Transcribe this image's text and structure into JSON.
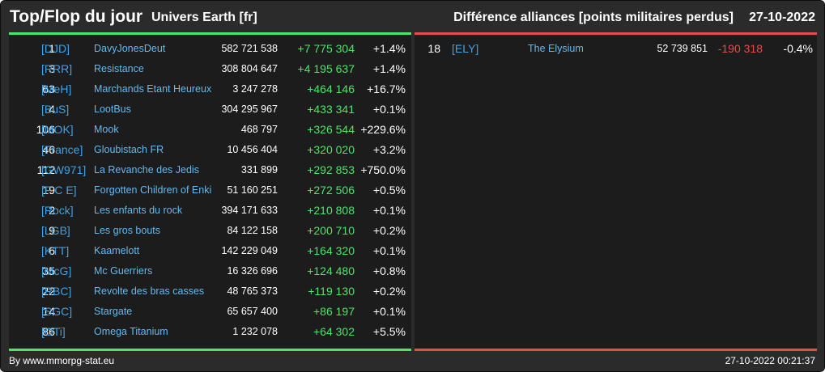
{
  "header": {
    "title": "Top/Flop du jour",
    "subtitle": "Univers Earth [fr]",
    "right_title": "Différence alliances [points militaires perdus]",
    "date": "27-10-2022"
  },
  "colors": {
    "background": "#2b2b2b",
    "panel": "#1c1c1c",
    "positive": "#4ee46a",
    "negative": "#e0504a",
    "tag": "#3fa2e8",
    "name": "#63b9f0"
  },
  "top": [
    {
      "rank": "1",
      "tag": "[DJD]",
      "name": "DavyJonesDeut",
      "points": "582 721 538",
      "diff": "+7 775 304",
      "pct": "+1.4%"
    },
    {
      "rank": "3",
      "tag": "[RRR]",
      "name": "Resistance",
      "points": "308 804 647",
      "diff": "+4 195 637",
      "pct": "+1.4%"
    },
    {
      "rank": "63",
      "tag": "[MeH]",
      "name": "Marchands Etant Heureux",
      "points": "3 247 278",
      "diff": "+464 146",
      "pct": "+16.7%"
    },
    {
      "rank": "4",
      "tag": "[BuS]",
      "name": "LootBus",
      "points": "304 295 967",
      "diff": "+433 341",
      "pct": "+0.1%"
    },
    {
      "rank": "106",
      "tag": "[MOK]",
      "name": "Mook",
      "points": "468 797",
      "diff": "+326 544",
      "pct": "+229.6%"
    },
    {
      "rank": "46",
      "tag": "[France]",
      "name": "Gloubistach FR",
      "points": "10 456 404",
      "diff": "+320 020",
      "pct": "+3.2%"
    },
    {
      "rank": "112",
      "tag": "[GW971]",
      "name": "La Revanche des Jedis",
      "points": "331 899",
      "diff": "+292 853",
      "pct": "+750.0%"
    },
    {
      "rank": "19",
      "tag": "[F C E]",
      "name": "Forgotten Children of Enki",
      "points": "51 160 251",
      "diff": "+272 506",
      "pct": "+0.5%"
    },
    {
      "rank": "2",
      "tag": "[Rock]",
      "name": "Les enfants du rock",
      "points": "394 171 633",
      "diff": "+210 808",
      "pct": "+0.1%"
    },
    {
      "rank": "9",
      "tag": "[LGB]",
      "name": "Les gros bouts",
      "points": "84 122 158",
      "diff": "+200 710",
      "pct": "+0.2%"
    },
    {
      "rank": "6",
      "tag": "[KTT]",
      "name": "Kaamelott",
      "points": "142 229 049",
      "diff": "+164 320",
      "pct": "+0.1%"
    },
    {
      "rank": "35",
      "tag": "[McG]",
      "name": "Mc Guerriers",
      "points": "16 326 696",
      "diff": "+124 480",
      "pct": "+0.8%"
    },
    {
      "rank": "22",
      "tag": "[RBC]",
      "name": "Revolte des bras casses",
      "points": "48 765 373",
      "diff": "+119 130",
      "pct": "+0.2%"
    },
    {
      "rank": "14",
      "tag": "[SGC]",
      "name": "Stargate",
      "points": "65 657 400",
      "diff": "+86 197",
      "pct": "+0.1%"
    },
    {
      "rank": "86",
      "tag": "[OTi]",
      "name": "Omega Titanium",
      "points": "1 232 078",
      "diff": "+64 302",
      "pct": "+5.5%"
    }
  ],
  "flop": [
    {
      "rank": "18",
      "tag": "[ELY]",
      "name": "The Elysium",
      "points": "52 739 851",
      "diff": "-190 318",
      "pct": "-0.4%"
    }
  ],
  "footer": {
    "source": "By www.mmorpg-stat.eu",
    "timestamp": "27-10-2022 00:21:37"
  }
}
